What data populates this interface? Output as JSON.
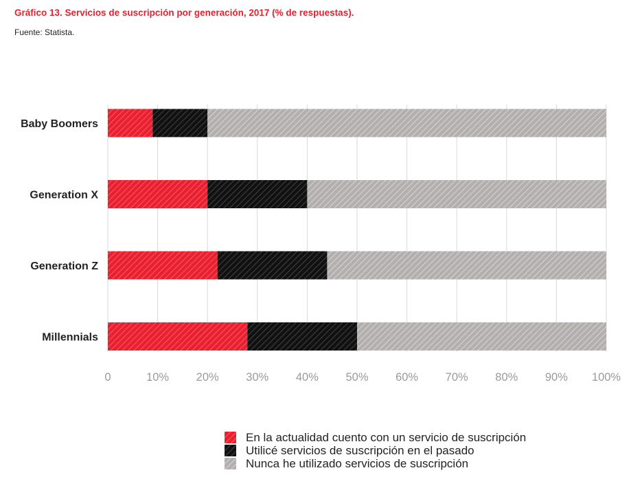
{
  "header": {
    "title": "Gráfico 13. Servicios de suscripción por generación, 2017 (% de respuestas).",
    "source": "Fuente: Statista."
  },
  "colors": {
    "current": "#e8202f",
    "past": "#1a1a1a",
    "never": "#b3afae",
    "grid": "#d9d9d9",
    "title": "#e8202f"
  },
  "chart_data": {
    "type": "bar",
    "orientation": "horizontal",
    "stacked": true,
    "categories": [
      "Baby Boomers",
      "Generation X",
      "Generation Z",
      "Millennials"
    ],
    "series": [
      {
        "name": "En la actualidad cuento con un servicio de suscripción",
        "values": [
          9,
          20,
          22,
          28
        ]
      },
      {
        "name": "Utilicé servicios de suscripción en el pasado",
        "values": [
          11,
          20,
          22,
          22
        ]
      },
      {
        "name": "Nunca he utilizado servicios de suscripción",
        "values": [
          80,
          60,
          56,
          50
        ]
      }
    ],
    "xlim": [
      0,
      100
    ],
    "xticks": [
      "0",
      "10%",
      "20%",
      "30%",
      "40%",
      "50%",
      "60%",
      "70%",
      "80%",
      "90%",
      "100%"
    ],
    "grid": true,
    "legend_position": "bottom"
  }
}
